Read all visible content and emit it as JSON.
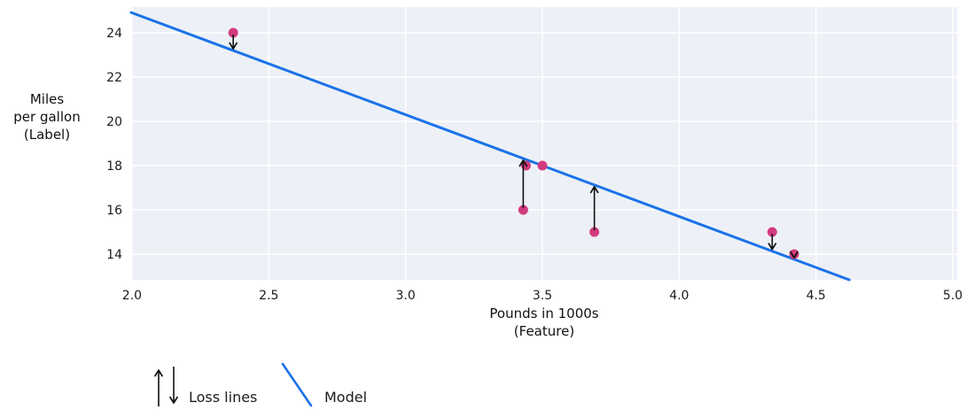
{
  "chart_data": {
    "type": "scatter",
    "title": "",
    "xlabel_lines": [
      "Pounds in 1000s",
      "(Feature)"
    ],
    "ylabel_lines": [
      "Miles",
      "per gallon",
      "(Label)"
    ],
    "x_tick_labels": [
      "2.0",
      "2.5",
      "3.0",
      "3.5",
      "4.0",
      "4.5",
      "5.0"
    ],
    "x_tick_values": [
      2.0,
      2.5,
      3.0,
      3.5,
      4.0,
      4.5,
      5.0
    ],
    "y_tick_labels": [
      "14",
      "16",
      "18",
      "20",
      "22",
      "24"
    ],
    "y_tick_values": [
      14,
      16,
      18,
      20,
      22,
      24
    ],
    "xlim": [
      1.997,
      5.016
    ],
    "ylim": [
      12.84,
      25.16
    ],
    "grid": true,
    "legend_position": "bottom-left",
    "points": [
      {
        "x": 2.37,
        "y": 24
      },
      {
        "x": 3.44,
        "y": 18
      },
      {
        "x": 3.5,
        "y": 18
      },
      {
        "x": 3.43,
        "y": 16
      },
      {
        "x": 3.69,
        "y": 15
      },
      {
        "x": 4.34,
        "y": 15
      },
      {
        "x": 4.42,
        "y": 14
      }
    ],
    "model": {
      "slope": -4.6,
      "intercept": 34.1
    },
    "loss_arrows": [
      {
        "x": 2.37,
        "from_y": 24,
        "direction": "down"
      },
      {
        "x": 3.43,
        "from_y": 16,
        "direction": "up"
      },
      {
        "x": 3.69,
        "from_y": 15,
        "direction": "up"
      },
      {
        "x": 4.34,
        "from_y": 15,
        "direction": "down"
      },
      {
        "x": 4.42,
        "from_y": 14,
        "direction": "down"
      }
    ],
    "legend": {
      "loss_label": "Loss lines",
      "model_label": "Model"
    },
    "colors": {
      "point": "#d23a7e",
      "model_line": "#1a73e8",
      "plot_bg": "#edf0f7",
      "grid": "#ffffff",
      "arrow": "#111111",
      "text": "#1c1c1c"
    }
  }
}
